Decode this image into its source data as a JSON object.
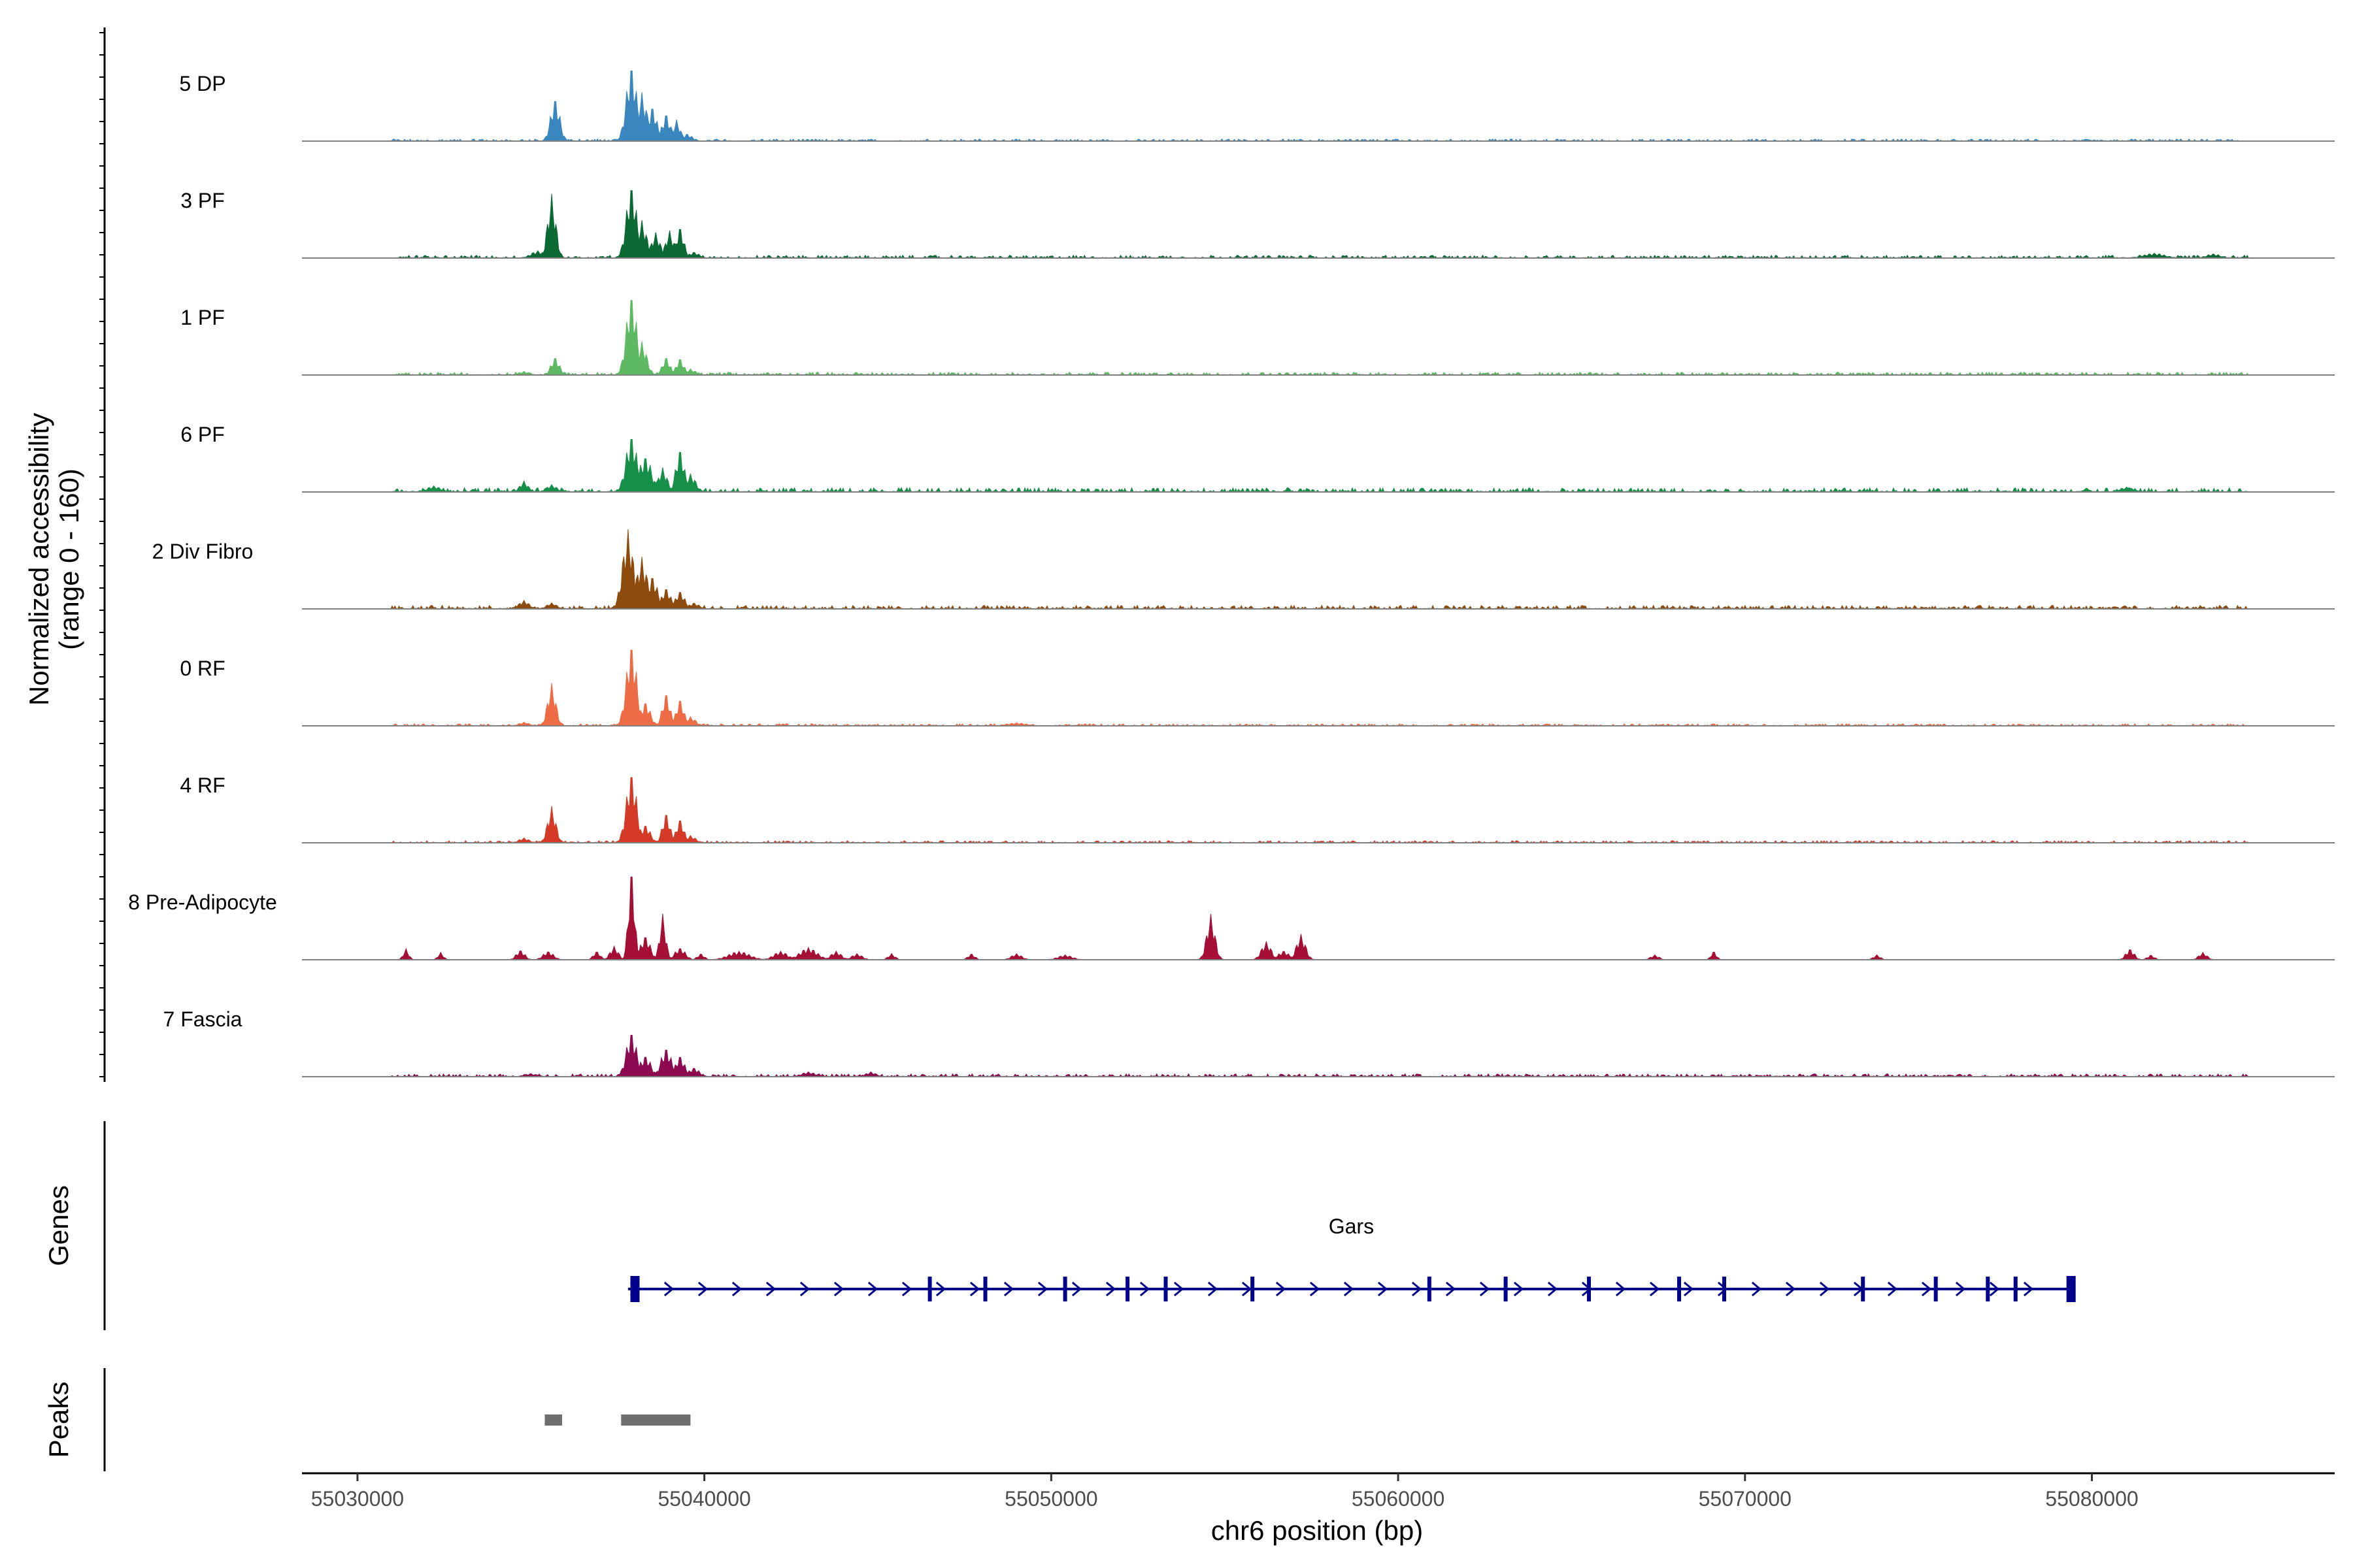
{
  "chart_data": {
    "type": "area",
    "title": "",
    "y_axis_title_lines": [
      "Normalized accessibility",
      "(range 0 - 160)"
    ],
    "ylim": [
      0,
      160
    ],
    "xlabel": "chr6 position (bp)",
    "xlim": [
      55028400,
      55087000
    ],
    "x_ticks": [
      55030000,
      55040000,
      55050000,
      55060000,
      55070000,
      55080000
    ],
    "x_tick_labels": [
      "55030000",
      "55040000",
      "55050000",
      "55060000",
      "55070000",
      "55080000"
    ],
    "series": [
      {
        "name": "5 DP",
        "color": "#3A87C0",
        "baseline": 1.5,
        "noise_range": [
          55031000,
          55084500
        ],
        "peaks": [
          [
            55035700,
            72,
            130
          ],
          [
            55037900,
            127,
            150
          ],
          [
            55038200,
            80,
            150
          ],
          [
            55038500,
            58,
            130
          ],
          [
            55038900,
            46,
            120
          ],
          [
            55039200,
            35,
            110
          ],
          [
            55039500,
            12,
            150
          ]
        ]
      },
      {
        "name": "3 PF",
        "color": "#0B6934",
        "baseline": 2,
        "noise_range": [
          55031000,
          55084500
        ],
        "peaks": [
          [
            55035600,
            105,
            120
          ],
          [
            55035200,
            12,
            200
          ],
          [
            55037900,
            122,
            150
          ],
          [
            55038200,
            62,
            140
          ],
          [
            55038600,
            42,
            130
          ],
          [
            55039000,
            45,
            120
          ],
          [
            55039300,
            52,
            110
          ],
          [
            55039700,
            10,
            150
          ],
          [
            55081800,
            8,
            300
          ],
          [
            55083500,
            7,
            200
          ]
        ]
      },
      {
        "name": "1 PF",
        "color": "#5DBA62",
        "baseline": 2,
        "noise_range": [
          55031000,
          55084500
        ],
        "peaks": [
          [
            55035700,
            30,
            120
          ],
          [
            55034800,
            6,
            150
          ],
          [
            55037900,
            135,
            150
          ],
          [
            55038200,
            55,
            140
          ],
          [
            55038900,
            30,
            110
          ],
          [
            55039300,
            28,
            110
          ],
          [
            55039600,
            10,
            150
          ]
        ]
      },
      {
        "name": "6 PF",
        "color": "#169048",
        "baseline": 3,
        "noise_range": [
          55031000,
          55084500
        ],
        "peaks": [
          [
            55034800,
            18,
            120
          ],
          [
            55035600,
            12,
            150
          ],
          [
            55037900,
            95,
            160
          ],
          [
            55038300,
            60,
            180
          ],
          [
            55038800,
            40,
            130
          ],
          [
            55039300,
            72,
            120
          ],
          [
            55039600,
            30,
            150
          ],
          [
            55032200,
            10,
            200
          ],
          [
            55081000,
            8,
            200
          ]
        ]
      },
      {
        "name": "2 Div Fibro",
        "color": "#8E4B0E",
        "baseline": 2.5,
        "noise_range": [
          55031000,
          55084500
        ],
        "peaks": [
          [
            55034800,
            14,
            150
          ],
          [
            55035600,
            10,
            150
          ],
          [
            55037800,
            130,
            160
          ],
          [
            55038200,
            85,
            160
          ],
          [
            55038500,
            55,
            150
          ],
          [
            55038900,
            35,
            130
          ],
          [
            55039300,
            30,
            130
          ],
          [
            55039700,
            10,
            150
          ]
        ]
      },
      {
        "name": "0 RF",
        "color": "#EE6C45",
        "baseline": 1.5,
        "noise_range": [
          55031000,
          55084500
        ],
        "peaks": [
          [
            55035600,
            70,
            120
          ],
          [
            55034800,
            6,
            150
          ],
          [
            55037900,
            137,
            150
          ],
          [
            55038300,
            40,
            140
          ],
          [
            55038900,
            55,
            110
          ],
          [
            55039300,
            45,
            110
          ],
          [
            55039600,
            15,
            150
          ],
          [
            55049000,
            5,
            300
          ]
        ]
      },
      {
        "name": "4 RF",
        "color": "#D43A27",
        "baseline": 1.5,
        "noise_range": [
          55031000,
          55084500
        ],
        "peaks": [
          [
            55035600,
            60,
            120
          ],
          [
            55034800,
            8,
            150
          ],
          [
            55037900,
            118,
            150
          ],
          [
            55038300,
            30,
            140
          ],
          [
            55038900,
            50,
            110
          ],
          [
            55039300,
            40,
            110
          ],
          [
            55039600,
            12,
            150
          ]
        ]
      },
      {
        "name": "8 Pre-Adipocyte",
        "color": "#A50F35",
        "baseline": 0,
        "noise_range": [
          55031000,
          55084500
        ],
        "peaks": [
          [
            55031400,
            18,
            80
          ],
          [
            55032400,
            12,
            80
          ],
          [
            55034700,
            16,
            120
          ],
          [
            55035500,
            14,
            150
          ],
          [
            55036900,
            14,
            100
          ],
          [
            55037400,
            22,
            120
          ],
          [
            55037900,
            152,
            90
          ],
          [
            55038300,
            40,
            140
          ],
          [
            55038800,
            75,
            90
          ],
          [
            55039300,
            20,
            150
          ],
          [
            55039900,
            10,
            100
          ],
          [
            55041000,
            14,
            300
          ],
          [
            55042200,
            14,
            200
          ],
          [
            55043000,
            20,
            250
          ],
          [
            55043800,
            14,
            150
          ],
          [
            55044400,
            10,
            150
          ],
          [
            55045400,
            10,
            100
          ],
          [
            55047700,
            10,
            100
          ],
          [
            55049000,
            10,
            150
          ],
          [
            55050400,
            8,
            200
          ],
          [
            55054600,
            75,
            120
          ],
          [
            55056200,
            30,
            140
          ],
          [
            55057200,
            42,
            130
          ],
          [
            55056700,
            15,
            150
          ],
          [
            55067400,
            8,
            120
          ],
          [
            55069100,
            14,
            80
          ],
          [
            55073800,
            8,
            100
          ],
          [
            55081100,
            18,
            120
          ],
          [
            55081700,
            8,
            100
          ],
          [
            55083200,
            12,
            120
          ]
        ]
      },
      {
        "name": "7 Fascia",
        "color": "#8B0A50",
        "baseline": 2,
        "noise_range": [
          55031000,
          55084500
        ],
        "peaks": [
          [
            55037900,
            75,
            150
          ],
          [
            55038300,
            35,
            160
          ],
          [
            55038900,
            48,
            150
          ],
          [
            55039300,
            35,
            130
          ],
          [
            55039700,
            15,
            150
          ],
          [
            55035000,
            5,
            200
          ],
          [
            55043000,
            8,
            200
          ],
          [
            55044800,
            8,
            150
          ]
        ]
      }
    ],
    "gene_track": {
      "title": "Genes",
      "gene_name": "Gars",
      "strand": "+",
      "start": 55037800,
      "end": 55079500,
      "exons": [
        55038000,
        55046500,
        55048100,
        55050400,
        55052200,
        55053300,
        55055800,
        55060900,
        55063100,
        55065500,
        55068100,
        55069400,
        55073400,
        55075500,
        55077000,
        55077800,
        55079400
      ],
      "color": "#00008B"
    },
    "peak_track": {
      "title": "Peaks",
      "color": "#6E6E6E",
      "regions": [
        [
          55035400,
          55035900
        ],
        [
          55037600,
          55039600
        ]
      ]
    }
  }
}
